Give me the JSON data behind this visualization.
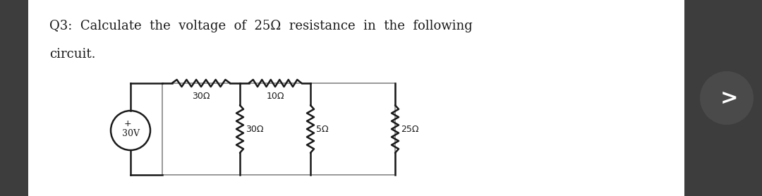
{
  "title_line1": "Q3:  Calculate  the  voltage  of  25Ω  resistance  in  the  following",
  "title_line2": "circuit.",
  "bg_color_side": "#3d3d3d",
  "bg_color_center": "#ffffff",
  "text_color": "#1a1a1a",
  "font_size_title": 13.0,
  "arrow_button_color": "#4a4a4a",
  "circuit": {
    "source_label": "30V",
    "r_series1": "30Ω",
    "r_series2": "10Ω",
    "r_parallel1": "30Ω",
    "r_parallel2": "5Ω",
    "r_parallel3": "25Ω"
  }
}
